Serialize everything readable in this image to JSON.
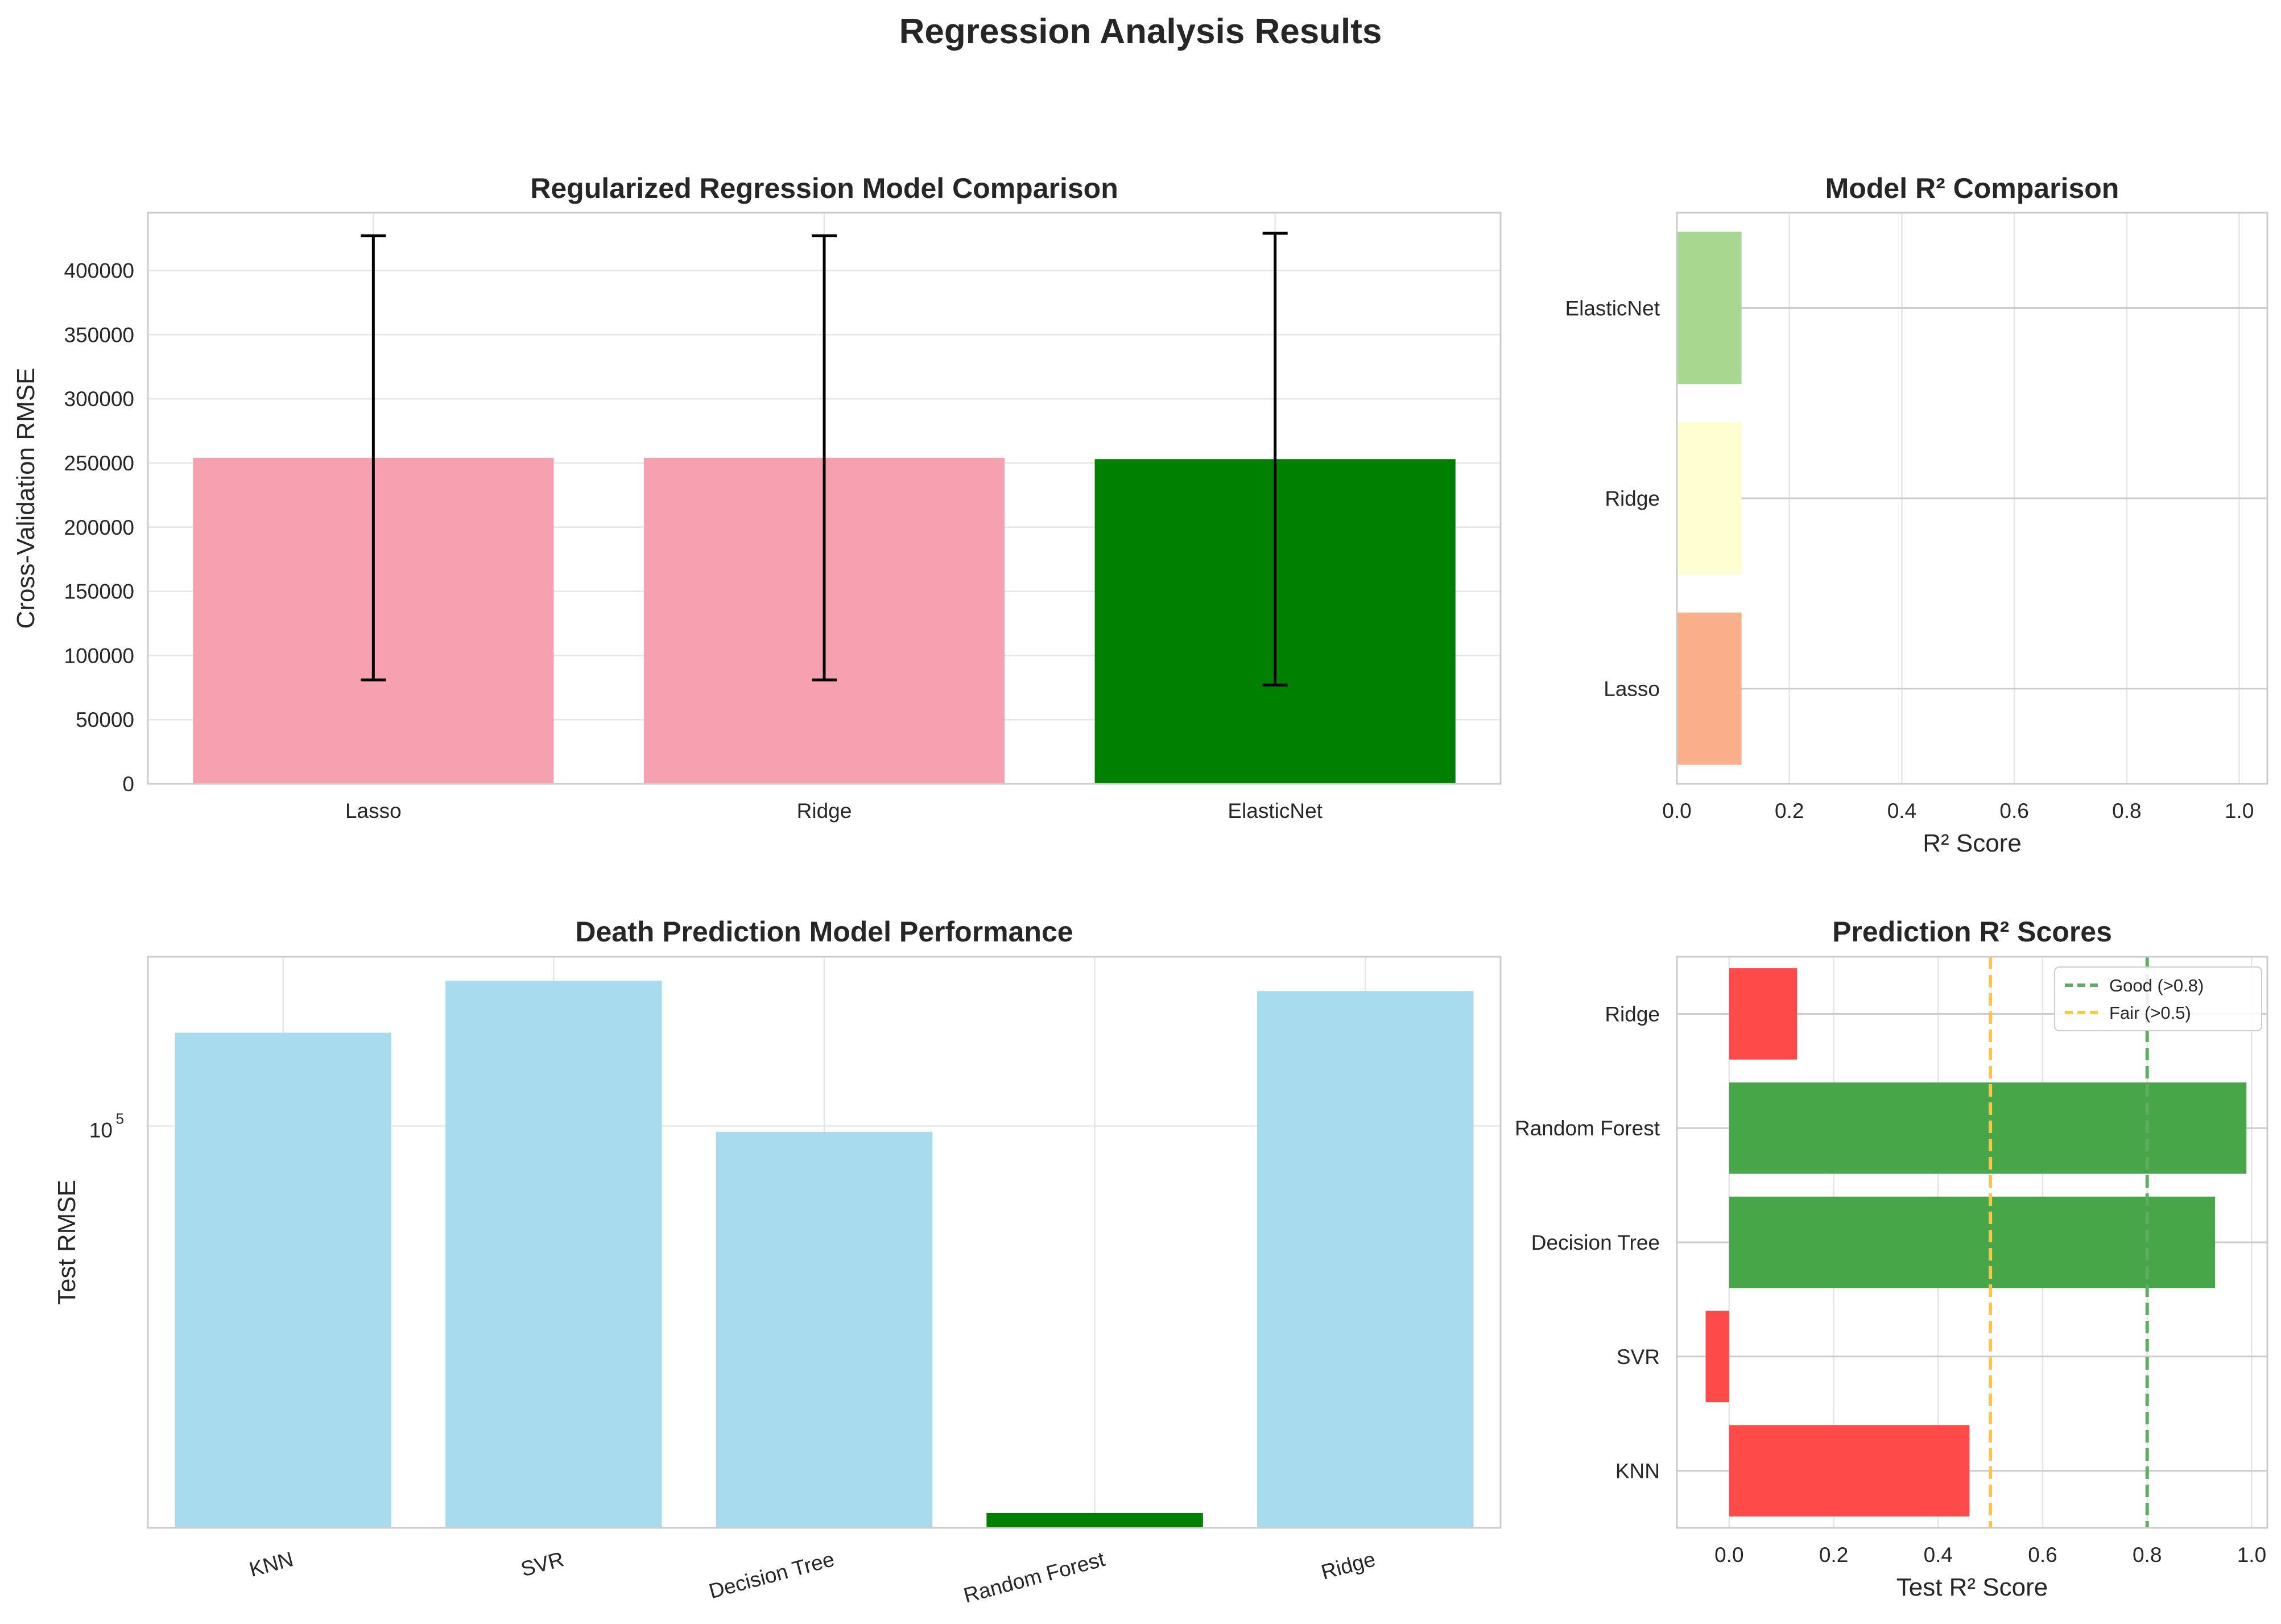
{
  "suptitle": "Regression Analysis Results",
  "chart_data": [
    {
      "id": "cv",
      "type": "bar",
      "title": "Regularized Regression Model Comparison",
      "xlabel": "",
      "ylabel": "Cross-Validation RMSE",
      "categories": [
        "Lasso",
        "Ridge",
        "ElasticNet"
      ],
      "values": [
        254000,
        254000,
        253000
      ],
      "error": [
        173000,
        173000,
        176000
      ],
      "colors": [
        "#f7a0b0",
        "#f7a0b0",
        "#008000"
      ],
      "ylim": [
        0,
        445000
      ],
      "yticks": [
        0,
        50000,
        100000,
        150000,
        200000,
        250000,
        300000,
        350000,
        400000
      ],
      "ytick_labels": [
        "0",
        "50000",
        "100000",
        "150000",
        "200000",
        "250000",
        "300000",
        "350000",
        "400000"
      ],
      "grid": true
    },
    {
      "id": "r2",
      "type": "bar",
      "orientation": "horizontal",
      "title": "Model R² Comparison",
      "xlabel": "R² Score",
      "ylabel": "",
      "categories": [
        "Lasso",
        "Ridge",
        "ElasticNet"
      ],
      "values": [
        0.115,
        0.115,
        0.115
      ],
      "colors": [
        "#f9b088",
        "#fefed0",
        "#a8d890"
      ],
      "xlim": [
        0,
        1.05
      ],
      "xticks": [
        0,
        0.2,
        0.4,
        0.6,
        0.8,
        1.0
      ],
      "xtick_labels": [
        "0.0",
        "0.2",
        "0.4",
        "0.6",
        "0.8",
        "1.0"
      ],
      "grid": true
    },
    {
      "id": "death",
      "type": "bar",
      "title": "Death Prediction Model Performance",
      "xlabel": "",
      "ylabel": "Test RMSE",
      "yscale": "log",
      "categories": [
        "KNN",
        "SVR",
        "Decision Tree",
        "Random Forest",
        "Ridge"
      ],
      "values": [
        162000,
        212000,
        97000,
        13500,
        201000
      ],
      "colors": [
        "#a8dbee",
        "#a8dbee",
        "#a8dbee",
        "#008000",
        "#a8dbee"
      ],
      "ylim": [
        12500,
        240000
      ],
      "yticks": [
        100000
      ],
      "ytick_base": "10",
      "ytick_exp": "5",
      "grid": true
    },
    {
      "id": "pred",
      "type": "bar",
      "orientation": "horizontal",
      "title": "Prediction R² Scores",
      "xlabel": "Test R² Score",
      "ylabel": "",
      "categories": [
        "KNN",
        "SVR",
        "Decision Tree",
        "Random Forest",
        "Ridge"
      ],
      "values": [
        0.46,
        -0.045,
        0.93,
        0.99,
        0.13
      ],
      "colors": [
        "#ff4a4a",
        "#ff4a4a",
        "#47a647",
        "#47a647",
        "#ff4a4a"
      ],
      "xlim": [
        -0.1,
        1.03
      ],
      "xticks": [
        0,
        0.2,
        0.4,
        0.6,
        0.8,
        1.0
      ],
      "xtick_labels": [
        "0.0",
        "0.2",
        "0.4",
        "0.6",
        "0.8",
        "1.0"
      ],
      "reference_lines": [
        {
          "value": 0.8,
          "label": "Good (>0.8)",
          "color": "#5fae5f"
        },
        {
          "value": 0.5,
          "label": "Fair (>0.5)",
          "color": "#ffc54d"
        }
      ],
      "legend_position": "top-right",
      "grid": true
    }
  ]
}
